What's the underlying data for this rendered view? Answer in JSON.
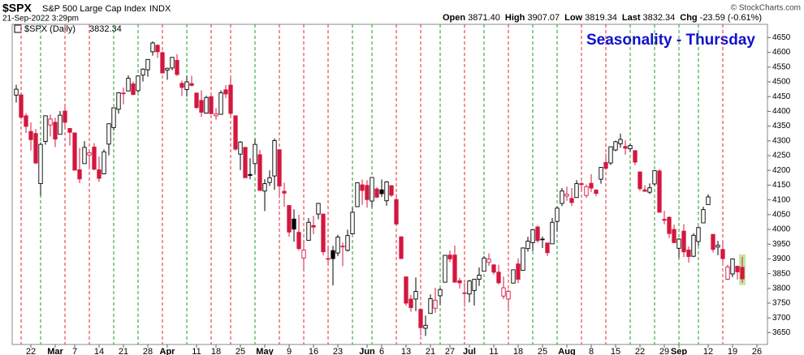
{
  "header": {
    "symbol": "$SPX",
    "name": "S&P 500 Large Cap Index",
    "exchange": "INDX",
    "timestamp": "21-Sep-2022 3:29pm",
    "copyright": "© StockCharts.com",
    "quote": [
      {
        "label": "Open",
        "value": "3871.40"
      },
      {
        "label": "High",
        "value": "3907.07"
      },
      {
        "label": "Low",
        "value": "3819.34"
      },
      {
        "label": "Last",
        "value": "3832.34"
      },
      {
        "label": "Chg",
        "value": "-23.59 (-0.61%)"
      }
    ]
  },
  "chart_data": {
    "type": "candlestick",
    "title": "Seasonality - Thursday",
    "legend": {
      "name": "$SPX (Daily)",
      "value": "3832.34"
    },
    "up_color": "#000000",
    "down_color": "#d4173f",
    "thursday_up_color": "#1e9e1e",
    "thursday_down_color": "#e02828",
    "ylim": [
      3610,
      4695
    ],
    "yticks": [
      3650,
      3700,
      3750,
      3800,
      3850,
      3900,
      3950,
      4000,
      4050,
      4100,
      4150,
      4200,
      4250,
      4300,
      4350,
      4400,
      4450,
      4500,
      4550,
      4600,
      4650
    ],
    "xticks": [
      {
        "value": "2022-02-22",
        "label": "22"
      },
      {
        "value": "2022-03-01",
        "label": "Mar"
      },
      {
        "value": "2022-03-07",
        "label": "7"
      },
      {
        "value": "2022-03-14",
        "label": "14"
      },
      {
        "value": "2022-03-21",
        "label": "21"
      },
      {
        "value": "2022-03-28",
        "label": "28"
      },
      {
        "value": "2022-04-01",
        "label": "Apr"
      },
      {
        "value": "2022-04-11",
        "label": "11"
      },
      {
        "value": "2022-04-18",
        "label": "18"
      },
      {
        "value": "2022-04-25",
        "label": "25"
      },
      {
        "value": "2022-05-02",
        "label": "May"
      },
      {
        "value": "2022-05-09",
        "label": "9"
      },
      {
        "value": "2022-05-16",
        "label": "16"
      },
      {
        "value": "2022-05-23",
        "label": "23"
      },
      {
        "value": "2022-06-01",
        "label": "Jun"
      },
      {
        "value": "2022-06-06",
        "label": "6"
      },
      {
        "value": "2022-06-13",
        "label": "13"
      },
      {
        "value": "2022-06-21",
        "label": "21"
      },
      {
        "value": "2022-06-27",
        "label": "27"
      },
      {
        "value": "2022-07-01",
        "label": "Jul"
      },
      {
        "value": "2022-07-11",
        "label": "11"
      },
      {
        "value": "2022-07-18",
        "label": "18"
      },
      {
        "value": "2022-07-25",
        "label": "25"
      },
      {
        "value": "2022-08-01",
        "label": "Aug"
      },
      {
        "value": "2022-08-08",
        "label": "8"
      },
      {
        "value": "2022-08-15",
        "label": "15"
      },
      {
        "value": "2022-08-22",
        "label": "22"
      },
      {
        "value": "2022-08-29",
        "label": "29"
      },
      {
        "value": "2022-09-01",
        "label": "Sep"
      },
      {
        "value": "2022-09-12",
        "label": "12"
      },
      {
        "value": "2022-09-19",
        "label": "19"
      },
      {
        "value": "2022-09-26",
        "label": "26"
      }
    ],
    "x": [
      "2022-02-16",
      "2022-02-17",
      "2022-02-18",
      "2022-02-22",
      "2022-02-23",
      "2022-02-24",
      "2022-02-25",
      "2022-02-28",
      "2022-03-01",
      "2022-03-02",
      "2022-03-03",
      "2022-03-04",
      "2022-03-07",
      "2022-03-08",
      "2022-03-09",
      "2022-03-10",
      "2022-03-11",
      "2022-03-14",
      "2022-03-15",
      "2022-03-16",
      "2022-03-17",
      "2022-03-18",
      "2022-03-21",
      "2022-03-22",
      "2022-03-23",
      "2022-03-24",
      "2022-03-25",
      "2022-03-28",
      "2022-03-29",
      "2022-03-30",
      "2022-03-31",
      "2022-04-01",
      "2022-04-04",
      "2022-04-05",
      "2022-04-06",
      "2022-04-07",
      "2022-04-08",
      "2022-04-11",
      "2022-04-12",
      "2022-04-13",
      "2022-04-14",
      "2022-04-18",
      "2022-04-19",
      "2022-04-20",
      "2022-04-21",
      "2022-04-22",
      "2022-04-25",
      "2022-04-26",
      "2022-04-27",
      "2022-04-28",
      "2022-04-29",
      "2022-05-02",
      "2022-05-03",
      "2022-05-04",
      "2022-05-05",
      "2022-05-06",
      "2022-05-09",
      "2022-05-10",
      "2022-05-11",
      "2022-05-12",
      "2022-05-13",
      "2022-05-16",
      "2022-05-17",
      "2022-05-18",
      "2022-05-19",
      "2022-05-20",
      "2022-05-23",
      "2022-05-24",
      "2022-05-25",
      "2022-05-26",
      "2022-05-27",
      "2022-05-31",
      "2022-06-01",
      "2022-06-02",
      "2022-06-03",
      "2022-06-06",
      "2022-06-07",
      "2022-06-08",
      "2022-06-09",
      "2022-06-10",
      "2022-06-13",
      "2022-06-14",
      "2022-06-15",
      "2022-06-16",
      "2022-06-17",
      "2022-06-21",
      "2022-06-22",
      "2022-06-23",
      "2022-06-24",
      "2022-06-27",
      "2022-06-28",
      "2022-06-29",
      "2022-06-30",
      "2022-07-01",
      "2022-07-05",
      "2022-07-06",
      "2022-07-07",
      "2022-07-08",
      "2022-07-11",
      "2022-07-12",
      "2022-07-13",
      "2022-07-14",
      "2022-07-15",
      "2022-07-18",
      "2022-07-19",
      "2022-07-20",
      "2022-07-21",
      "2022-07-22",
      "2022-07-25",
      "2022-07-26",
      "2022-07-27",
      "2022-07-28",
      "2022-07-29",
      "2022-08-01",
      "2022-08-02",
      "2022-08-03",
      "2022-08-04",
      "2022-08-05",
      "2022-08-08",
      "2022-08-09",
      "2022-08-10",
      "2022-08-11",
      "2022-08-12",
      "2022-08-15",
      "2022-08-16",
      "2022-08-17",
      "2022-08-18",
      "2022-08-19",
      "2022-08-22",
      "2022-08-23",
      "2022-08-24",
      "2022-08-25",
      "2022-08-26",
      "2022-08-29",
      "2022-08-30",
      "2022-08-31",
      "2022-09-01",
      "2022-09-02",
      "2022-09-06",
      "2022-09-07",
      "2022-09-08",
      "2022-09-09",
      "2022-09-12",
      "2022-09-13",
      "2022-09-14",
      "2022-09-15",
      "2022-09-16",
      "2022-09-19",
      "2022-09-20",
      "2022-09-21"
    ],
    "ohlc": [
      [
        4455,
        4490,
        4430,
        4475
      ],
      [
        4456,
        4457,
        4373,
        4380
      ],
      [
        4385,
        4394,
        4327,
        4349
      ],
      [
        4332,
        4363,
        4268,
        4304
      ],
      [
        4325,
        4340,
        4221,
        4225
      ],
      [
        4155,
        4295,
        4114,
        4288
      ],
      [
        4298,
        4385,
        4287,
        4385
      ],
      [
        4354,
        4389,
        4315,
        4374
      ],
      [
        4363,
        4378,
        4279,
        4306
      ],
      [
        4322,
        4401,
        4322,
        4387
      ],
      [
        4401,
        4416,
        4345,
        4363
      ],
      [
        4342,
        4343,
        4284,
        4329
      ],
      [
        4327,
        4327,
        4199,
        4201
      ],
      [
        4202,
        4276,
        4157,
        4171
      ],
      [
        4223,
        4299,
        4223,
        4278
      ],
      [
        4252,
        4268,
        4209,
        4260
      ],
      [
        4279,
        4292,
        4200,
        4204
      ],
      [
        4202,
        4247,
        4161,
        4173
      ],
      [
        4188,
        4271,
        4187,
        4263
      ],
      [
        4289,
        4358,
        4251,
        4358
      ],
      [
        4345,
        4412,
        4335,
        4412
      ],
      [
        4407,
        4465,
        4392,
        4463
      ],
      [
        4462,
        4481,
        4424,
        4461
      ],
      [
        4469,
        4522,
        4469,
        4512
      ],
      [
        4493,
        4501,
        4455,
        4457
      ],
      [
        4470,
        4521,
        4465,
        4520
      ],
      [
        4523,
        4546,
        4501,
        4543
      ],
      [
        4541,
        4576,
        4517,
        4576
      ],
      [
        4602,
        4637,
        4589,
        4632
      ],
      [
        4624,
        4627,
        4581,
        4602
      ],
      [
        4599,
        4603,
        4530,
        4530
      ],
      [
        4540,
        4548,
        4507,
        4546
      ],
      [
        4547,
        4583,
        4539,
        4583
      ],
      [
        4573,
        4594,
        4520,
        4525
      ],
      [
        4495,
        4504,
        4452,
        4481
      ],
      [
        4474,
        4521,
        4450,
        4500
      ],
      [
        4494,
        4521,
        4485,
        4488
      ],
      [
        4462,
        4464,
        4408,
        4413
      ],
      [
        4437,
        4471,
        4381,
        4397
      ],
      [
        4394,
        4453,
        4392,
        4447
      ],
      [
        4450,
        4453,
        4392,
        4392
      ],
      [
        4385,
        4411,
        4372,
        4391
      ],
      [
        4390,
        4471,
        4390,
        4463
      ],
      [
        4473,
        4489,
        4445,
        4459
      ],
      [
        4489,
        4512,
        4384,
        4393
      ],
      [
        4385,
        4386,
        4267,
        4272
      ],
      [
        4255,
        4299,
        4201,
        4296
      ],
      [
        4278,
        4278,
        4175,
        4175
      ],
      [
        4186,
        4241,
        4170,
        4183
      ],
      [
        4223,
        4308,
        4188,
        4288
      ],
      [
        4253,
        4269,
        4131,
        4132
      ],
      [
        4130,
        4170,
        4062,
        4155
      ],
      [
        4159,
        4200,
        4147,
        4175
      ],
      [
        4181,
        4308,
        4134,
        4301
      ],
      [
        4270,
        4270,
        4106,
        4147
      ],
      [
        4129,
        4158,
        4077,
        4123
      ],
      [
        4081,
        4082,
        3975,
        3991
      ],
      [
        4035,
        4068,
        3958,
        4001
      ],
      [
        3990,
        4050,
        3928,
        3935
      ],
      [
        3903,
        3965,
        3859,
        3930
      ],
      [
        3963,
        4038,
        3963,
        4024
      ],
      [
        4013,
        4046,
        3984,
        4008
      ],
      [
        4052,
        4090,
        4034,
        4088
      ],
      [
        4052,
        4052,
        3912,
        3924
      ],
      [
        3900,
        3945,
        3877,
        3901
      ],
      [
        3928,
        3944,
        3810,
        3901
      ],
      [
        3920,
        3982,
        3909,
        3974
      ],
      [
        3943,
        3955,
        3875,
        3941
      ],
      [
        3929,
        3999,
        3925,
        3979
      ],
      [
        3985,
        4075,
        3984,
        4058
      ],
      [
        4077,
        4158,
        4077,
        4158
      ],
      [
        4151,
        4169,
        4083,
        4132
      ],
      [
        4149,
        4167,
        4074,
        4101
      ],
      [
        4096,
        4177,
        4074,
        4176
      ],
      [
        4137,
        4143,
        4107,
        4109
      ],
      [
        4134,
        4169,
        4110,
        4121
      ],
      [
        4097,
        4164,
        4080,
        4161
      ],
      [
        4148,
        4150,
        4110,
        4116
      ],
      [
        4101,
        4120,
        4018,
        4018
      ],
      [
        3975,
        3975,
        3900,
        3901
      ],
      [
        3839,
        3839,
        3741,
        3750
      ],
      [
        3764,
        3778,
        3721,
        3735
      ],
      [
        3764,
        3837,
        3723,
        3790
      ],
      [
        3729,
        3729,
        3640,
        3667
      ],
      [
        3665,
        3708,
        3639,
        3675
      ],
      [
        3715,
        3780,
        3715,
        3765
      ],
      [
        3733,
        3802,
        3717,
        3760
      ],
      [
        3775,
        3802,
        3744,
        3796
      ],
      [
        3821,
        3913,
        3821,
        3912
      ],
      [
        3913,
        3928,
        3889,
        3900
      ],
      [
        3913,
        3945,
        3820,
        3821
      ],
      [
        3826,
        3836,
        3800,
        3819
      ],
      [
        3785,
        3818,
        3738,
        3785
      ],
      [
        3781,
        3829,
        3753,
        3825
      ],
      [
        3793,
        3832,
        3742,
        3831
      ],
      [
        3831,
        3871,
        3808,
        3845
      ],
      [
        3858,
        3910,
        3858,
        3903
      ],
      [
        3888,
        3919,
        3876,
        3899
      ],
      [
        3880,
        3880,
        3847,
        3855
      ],
      [
        3855,
        3880,
        3814,
        3819
      ],
      [
        3774,
        3840,
        3764,
        3802
      ],
      [
        3764,
        3796,
        3722,
        3790
      ],
      [
        3818,
        3863,
        3818,
        3863
      ],
      [
        3883,
        3902,
        3818,
        3831
      ],
      [
        3861,
        3939,
        3861,
        3937
      ],
      [
        3935,
        3975,
        3925,
        3960
      ],
      [
        3955,
        3999,
        3927,
        3999
      ],
      [
        4008,
        4013,
        3955,
        3962
      ],
      [
        3966,
        3976,
        3937,
        3967
      ],
      [
        3954,
        3954,
        3910,
        3921
      ],
      [
        3951,
        4039,
        3951,
        4024
      ],
      [
        4027,
        4078,
        3993,
        4072
      ],
      [
        4088,
        4140,
        4079,
        4130
      ],
      [
        4113,
        4145,
        4097,
        4119
      ],
      [
        4105,
        4140,
        4079,
        4091
      ],
      [
        4108,
        4167,
        4108,
        4155
      ],
      [
        4155,
        4161,
        4128,
        4152
      ],
      [
        4115,
        4152,
        4107,
        4145
      ],
      [
        4156,
        4187,
        4127,
        4140
      ],
      [
        4133,
        4137,
        4112,
        4122
      ],
      [
        4170,
        4211,
        4155,
        4210
      ],
      [
        4227,
        4257,
        4201,
        4207
      ],
      [
        4225,
        4281,
        4218,
        4280
      ],
      [
        4269,
        4301,
        4265,
        4297
      ],
      [
        4290,
        4325,
        4277,
        4305
      ],
      [
        4281,
        4302,
        4253,
        4275
      ],
      [
        4273,
        4292,
        4262,
        4284
      ],
      [
        4267,
        4267,
        4218,
        4228
      ],
      [
        4195,
        4195,
        4131,
        4138
      ],
      [
        4134,
        4150,
        4128,
        4129
      ],
      [
        4126,
        4156,
        4120,
        4141
      ],
      [
        4154,
        4200,
        4147,
        4199
      ],
      [
        4198,
        4204,
        4057,
        4058
      ],
      [
        4034,
        4063,
        4017,
        4031
      ],
      [
        4041,
        4044,
        3971,
        3986
      ],
      [
        4000,
        4016,
        3954,
        3955
      ],
      [
        3936,
        3970,
        3904,
        3967
      ],
      [
        3994,
        4018,
        3906,
        3924
      ],
      [
        3930,
        3942,
        3887,
        3908
      ],
      [
        3909,
        3987,
        3906,
        3980
      ],
      [
        3959,
        4010,
        3945,
        4006
      ],
      [
        4022,
        4077,
        4022,
        4067
      ],
      [
        4084,
        4119,
        4084,
        4110
      ],
      [
        3983,
        3983,
        3922,
        3932
      ],
      [
        3940,
        3961,
        3913,
        3946
      ],
      [
        3932,
        3959,
        3888,
        3901
      ],
      [
        3831,
        3880,
        3828,
        3873
      ],
      [
        3849,
        3902,
        3838,
        3900
      ],
      [
        3875,
        3877,
        3830,
        3856
      ],
      [
        3871.4,
        3907.07,
        3819.34,
        3832.34
      ]
    ]
  }
}
